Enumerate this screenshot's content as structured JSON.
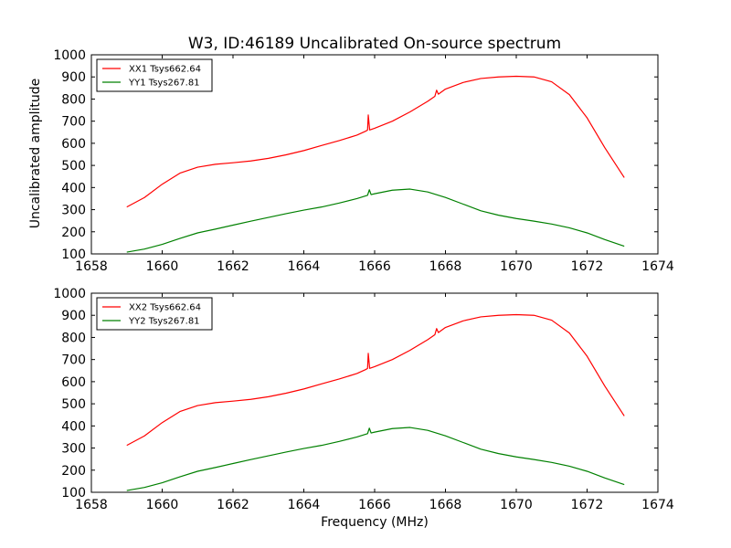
{
  "figure": {
    "title": "W3, ID:46189 Uncalibrated On-source spectrum",
    "ylabel": "Uncalibrated amplitude",
    "xlabel": "Frequency (MHz)"
  },
  "chart_data": [
    {
      "type": "line",
      "title": "W3, ID:46189 Uncalibrated On-source spectrum",
      "ylabel": "Uncalibrated amplitude",
      "xlabel": "",
      "xlim": [
        1658,
        1674
      ],
      "ylim": [
        100,
        1000
      ],
      "xticks": [
        "1658",
        "1660",
        "1662",
        "1664",
        "1666",
        "1668",
        "1670",
        "1672",
        "1674"
      ],
      "yticks": [
        "100",
        "200",
        "300",
        "400",
        "500",
        "600",
        "700",
        "800",
        "900",
        "1000"
      ],
      "grid": false,
      "legend_position": "top-left",
      "series": [
        {
          "name": "XX1 Tsys662.64",
          "color": "#ff0000",
          "x": [
            1659.0,
            1659.5,
            1660.0,
            1660.5,
            1661.0,
            1661.5,
            1662.0,
            1662.5,
            1663.0,
            1663.5,
            1664.0,
            1664.5,
            1665.0,
            1665.5,
            1665.75,
            1665.8,
            1665.82,
            1665.86,
            1666.0,
            1666.5,
            1667.0,
            1667.5,
            1667.7,
            1667.75,
            1667.8,
            1668.0,
            1668.5,
            1669.0,
            1669.5,
            1670.0,
            1670.5,
            1671.0,
            1671.5,
            1672.0,
            1672.5,
            1673.05
          ],
          "y": [
            312,
            355,
            415,
            465,
            492,
            505,
            512,
            520,
            532,
            548,
            567,
            590,
            612,
            637,
            655,
            660,
            728,
            660,
            668,
            700,
            742,
            790,
            812,
            840,
            822,
            845,
            875,
            893,
            900,
            903,
            900,
            878,
            820,
            715,
            580,
            445
          ]
        },
        {
          "name": "YY1 Tsys267.81",
          "color": "#008000",
          "x": [
            1659.0,
            1659.5,
            1660.0,
            1660.5,
            1661.0,
            1661.5,
            1662.0,
            1662.5,
            1663.0,
            1663.5,
            1664.0,
            1664.5,
            1665.0,
            1665.5,
            1665.8,
            1665.85,
            1665.9,
            1666.0,
            1666.5,
            1667.0,
            1667.5,
            1668.0,
            1668.5,
            1669.0,
            1669.5,
            1670.0,
            1670.5,
            1671.0,
            1671.5,
            1672.0,
            1672.5,
            1673.05
          ],
          "y": [
            108,
            122,
            143,
            170,
            195,
            212,
            230,
            248,
            265,
            282,
            298,
            312,
            330,
            350,
            365,
            390,
            368,
            372,
            388,
            393,
            380,
            355,
            325,
            295,
            275,
            260,
            248,
            235,
            218,
            195,
            165,
            135
          ]
        }
      ]
    },
    {
      "type": "line",
      "title": "",
      "ylabel": "",
      "xlabel": "Frequency (MHz)",
      "xlim": [
        1658,
        1674
      ],
      "ylim": [
        100,
        1000
      ],
      "xticks": [
        "1658",
        "1660",
        "1662",
        "1664",
        "1666",
        "1668",
        "1670",
        "1672",
        "1674"
      ],
      "yticks": [
        "100",
        "200",
        "300",
        "400",
        "500",
        "600",
        "700",
        "800",
        "900",
        "1000"
      ],
      "grid": false,
      "legend_position": "top-left",
      "series": [
        {
          "name": "XX2 Tsys662.64",
          "color": "#ff0000",
          "x": [
            1659.0,
            1659.5,
            1660.0,
            1660.5,
            1661.0,
            1661.5,
            1662.0,
            1662.5,
            1663.0,
            1663.5,
            1664.0,
            1664.5,
            1665.0,
            1665.5,
            1665.75,
            1665.8,
            1665.82,
            1665.86,
            1666.0,
            1666.5,
            1667.0,
            1667.5,
            1667.7,
            1667.75,
            1667.8,
            1668.0,
            1668.5,
            1669.0,
            1669.5,
            1670.0,
            1670.5,
            1671.0,
            1671.5,
            1672.0,
            1672.5,
            1673.05
          ],
          "y": [
            312,
            355,
            415,
            465,
            492,
            505,
            512,
            520,
            532,
            548,
            567,
            590,
            612,
            637,
            655,
            660,
            728,
            660,
            668,
            700,
            742,
            790,
            812,
            840,
            822,
            845,
            875,
            893,
            900,
            903,
            900,
            878,
            820,
            715,
            580,
            445
          ]
        },
        {
          "name": "YY2 Tsys267.81",
          "color": "#008000",
          "x": [
            1659.0,
            1659.5,
            1660.0,
            1660.5,
            1661.0,
            1661.5,
            1662.0,
            1662.5,
            1663.0,
            1663.5,
            1664.0,
            1664.5,
            1665.0,
            1665.5,
            1665.8,
            1665.85,
            1665.9,
            1666.0,
            1666.5,
            1667.0,
            1667.5,
            1668.0,
            1668.5,
            1669.0,
            1669.5,
            1670.0,
            1670.5,
            1671.0,
            1671.5,
            1672.0,
            1672.5,
            1673.05
          ],
          "y": [
            108,
            122,
            143,
            170,
            195,
            212,
            230,
            248,
            265,
            282,
            298,
            312,
            330,
            350,
            365,
            390,
            368,
            372,
            388,
            393,
            380,
            355,
            325,
            295,
            275,
            260,
            248,
            235,
            218,
            195,
            165,
            135
          ]
        }
      ]
    }
  ]
}
